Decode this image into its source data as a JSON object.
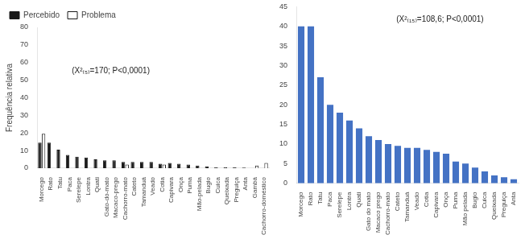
{
  "chart_data": [
    {
      "type": "bar",
      "categories": [
        "Morcego",
        "Rato",
        "Tatu",
        "Paca",
        "Serelepe",
        "Lontra",
        "Quati",
        "Gato-do-mato",
        "Macaco-prego",
        "Cachorro-mato",
        "Cateto",
        "Tamanduá",
        "Veado",
        "Cotia",
        "Capivara",
        "Onça",
        "Puma",
        "Mão-pelada",
        "Bugio",
        "Cuica",
        "Queixada",
        "Preguiça",
        "Anta",
        "Gambá",
        "Cachorro-doméstico"
      ],
      "series": [
        {
          "name": "Percebido",
          "color": "#1a1a1a",
          "values": [
            14.5,
            14.5,
            10.5,
            7.5,
            6.5,
            6.0,
            5.0,
            4.5,
            4.5,
            3.5,
            3.5,
            3.5,
            3.5,
            2.5,
            3.0,
            2.5,
            2.0,
            1.5,
            1.0,
            0.5,
            0.5,
            0.5,
            0.3,
            0.0,
            0.0
          ]
        },
        {
          "name": "Problema",
          "color": "#ffffff",
          "values": [
            19.5,
            0.0,
            0.0,
            0.0,
            0.0,
            0.0,
            0.0,
            0.0,
            0.0,
            2.0,
            0.0,
            0.0,
            0.0,
            2.0,
            0.0,
            0.0,
            0.0,
            0.0,
            0.0,
            0.0,
            0.0,
            0.0,
            0.0,
            1.5,
            3.0
          ]
        }
      ],
      "y_label": "Frequência relativa",
      "ylim": [
        0,
        80
      ],
      "yticks": [
        0,
        10,
        20,
        30,
        40,
        50,
        60,
        70,
        80
      ],
      "legend": "upper left",
      "grid": false,
      "annotations": [
        "(X²₍₅₎=170; P<0,0001)"
      ]
    },
    {
      "type": "bar",
      "categories": [
        "Morcego",
        "Rato",
        "Tatu",
        "Paca",
        "Serelepe",
        "Lontra",
        "Quati",
        "Gato do mato",
        "Macaco prego",
        "Cachorro-mato",
        "Cateto",
        "Tamanduá",
        "Veado",
        "Cotia",
        "Capivara",
        "Onça",
        "Puma",
        "Mão pelada",
        "Bugio",
        "Cuica",
        "Queixada",
        "Preguiça",
        "Anta"
      ],
      "values": [
        40,
        40,
        27,
        20,
        18,
        16,
        14,
        12,
        11,
        10,
        9.5,
        9,
        9,
        8.5,
        8,
        7.5,
        5.5,
        5,
        4,
        3,
        2,
        1.5,
        1
      ],
      "color": "#4472C4",
      "ylim": [
        0,
        45
      ],
      "yticks": [
        0,
        5,
        10,
        15,
        20,
        25,
        30,
        35,
        40,
        45
      ],
      "grid": false,
      "annotations": [
        "(X²₍₁₅₎=108,6; P<0,0001)"
      ]
    }
  ]
}
